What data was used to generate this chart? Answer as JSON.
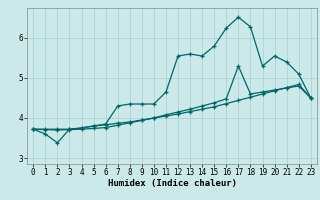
{
  "xlabel": "Humidex (Indice chaleur)",
  "bg_color": "#cce9e9",
  "grid_color": "#aad4d4",
  "line_color": "#006666",
  "x_values": [
    0,
    1,
    2,
    3,
    4,
    5,
    6,
    7,
    8,
    9,
    10,
    11,
    12,
    13,
    14,
    15,
    16,
    17,
    18,
    19,
    20,
    21,
    22,
    23
  ],
  "line1_y": [
    3.72,
    3.6,
    3.38,
    3.72,
    3.75,
    3.8,
    3.85,
    4.3,
    4.35,
    4.35,
    4.35,
    4.65,
    5.55,
    5.6,
    5.55,
    5.8,
    6.25,
    6.52,
    6.28,
    5.3,
    5.55,
    5.4,
    5.1,
    4.5
  ],
  "line2_y": [
    3.72,
    3.72,
    3.72,
    3.72,
    3.75,
    3.8,
    3.83,
    3.87,
    3.9,
    3.95,
    4.0,
    4.08,
    4.15,
    4.22,
    4.3,
    4.38,
    4.48,
    5.3,
    4.6,
    4.65,
    4.7,
    4.75,
    4.8,
    4.5
  ],
  "line3_y": [
    3.72,
    3.71,
    3.7,
    3.71,
    3.72,
    3.74,
    3.76,
    3.82,
    3.88,
    3.94,
    4.0,
    4.05,
    4.1,
    4.16,
    4.22,
    4.28,
    4.36,
    4.44,
    4.52,
    4.6,
    4.68,
    4.76,
    4.84,
    4.5
  ],
  "ylim": [
    2.85,
    6.75
  ],
  "yticks": [
    3,
    4,
    5,
    6
  ],
  "xticks": [
    0,
    1,
    2,
    3,
    4,
    5,
    6,
    7,
    8,
    9,
    10,
    11,
    12,
    13,
    14,
    15,
    16,
    17,
    18,
    19,
    20,
    21,
    22,
    23
  ],
  "axis_fontsize": 6.5,
  "tick_fontsize": 5.5
}
